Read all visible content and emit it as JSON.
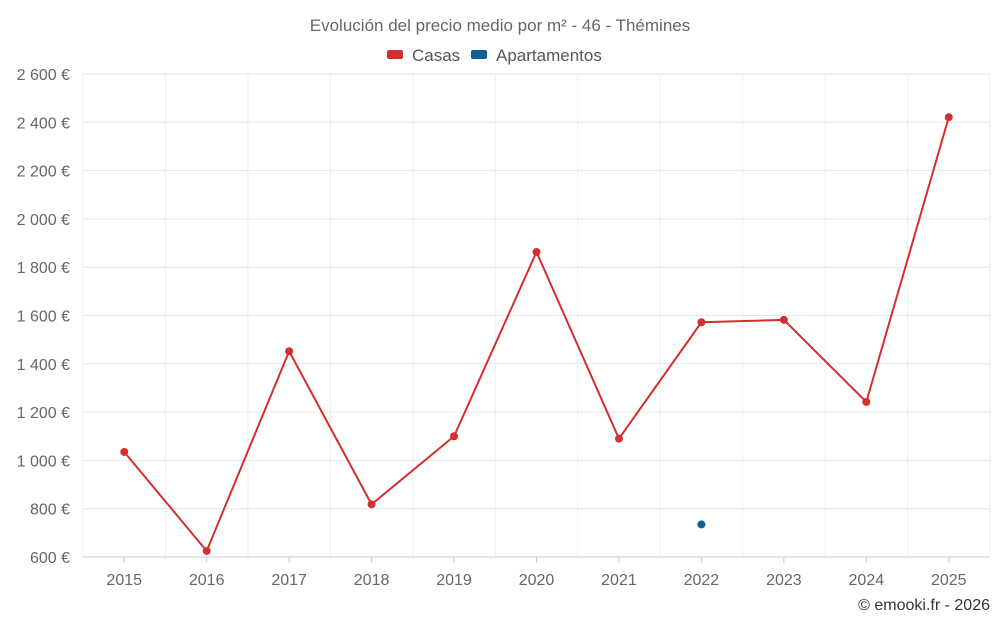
{
  "chart_data": {
    "type": "line",
    "title": "Evolución del precio medio por m² - 46 - Thémines",
    "categories": [
      "2015",
      "2016",
      "2017",
      "2018",
      "2019",
      "2020",
      "2021",
      "2022",
      "2023",
      "2024",
      "2025"
    ],
    "series": [
      {
        "name": "Casas",
        "color": "#d32f2f",
        "values": [
          1035,
          625,
          1452,
          818,
          1100,
          1863,
          1090,
          1572,
          1582,
          1242,
          2421
        ]
      },
      {
        "name": "Apartamentos",
        "color": "#0b6394",
        "values": [
          null,
          null,
          null,
          null,
          null,
          null,
          null,
          735,
          null,
          null,
          null
        ]
      }
    ],
    "yticks": [
      600,
      800,
      1000,
      1200,
      1400,
      1600,
      1800,
      2000,
      2200,
      2400,
      2600
    ],
    "ytick_labels": [
      "600 €",
      "800 €",
      "1 000 €",
      "1 200 €",
      "1 400 €",
      "1 600 €",
      "1 800 €",
      "2 000 €",
      "2 200 €",
      "2 400 €",
      "2 600 €"
    ],
    "ylim": [
      600,
      2600
    ],
    "grid": true,
    "legend_position": "top-center",
    "credit": "© emooki.fr - 2026"
  }
}
